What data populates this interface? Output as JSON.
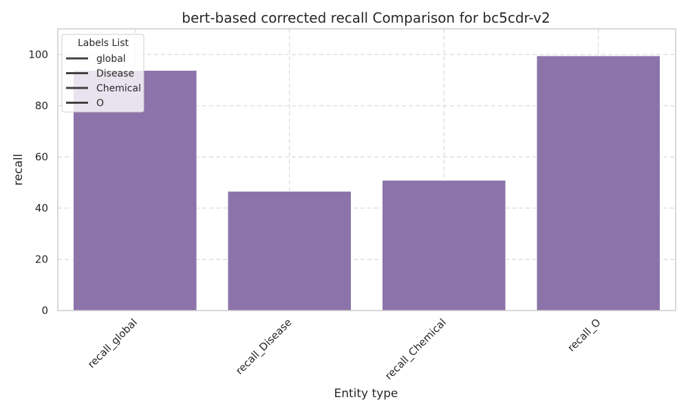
{
  "chart_data": {
    "type": "bar",
    "title": "bert-based corrected recall Comparison for bc5cdr-v2",
    "xlabel": "Entity type",
    "ylabel": "recall",
    "categories": [
      "recall_global",
      "recall_Disease",
      "recall_Chemical",
      "recall_O"
    ],
    "values": [
      93.8,
      46.6,
      50.9,
      99.5
    ],
    "ylim": [
      0,
      110
    ],
    "yticks": [
      0,
      20,
      40,
      60,
      80,
      100
    ],
    "bar_color": "#8c74aa",
    "grid": true,
    "legend": {
      "title": "Labels List",
      "placement": "top-left",
      "entries": [
        "global",
        "Disease",
        "Chemical",
        "O"
      ]
    }
  }
}
